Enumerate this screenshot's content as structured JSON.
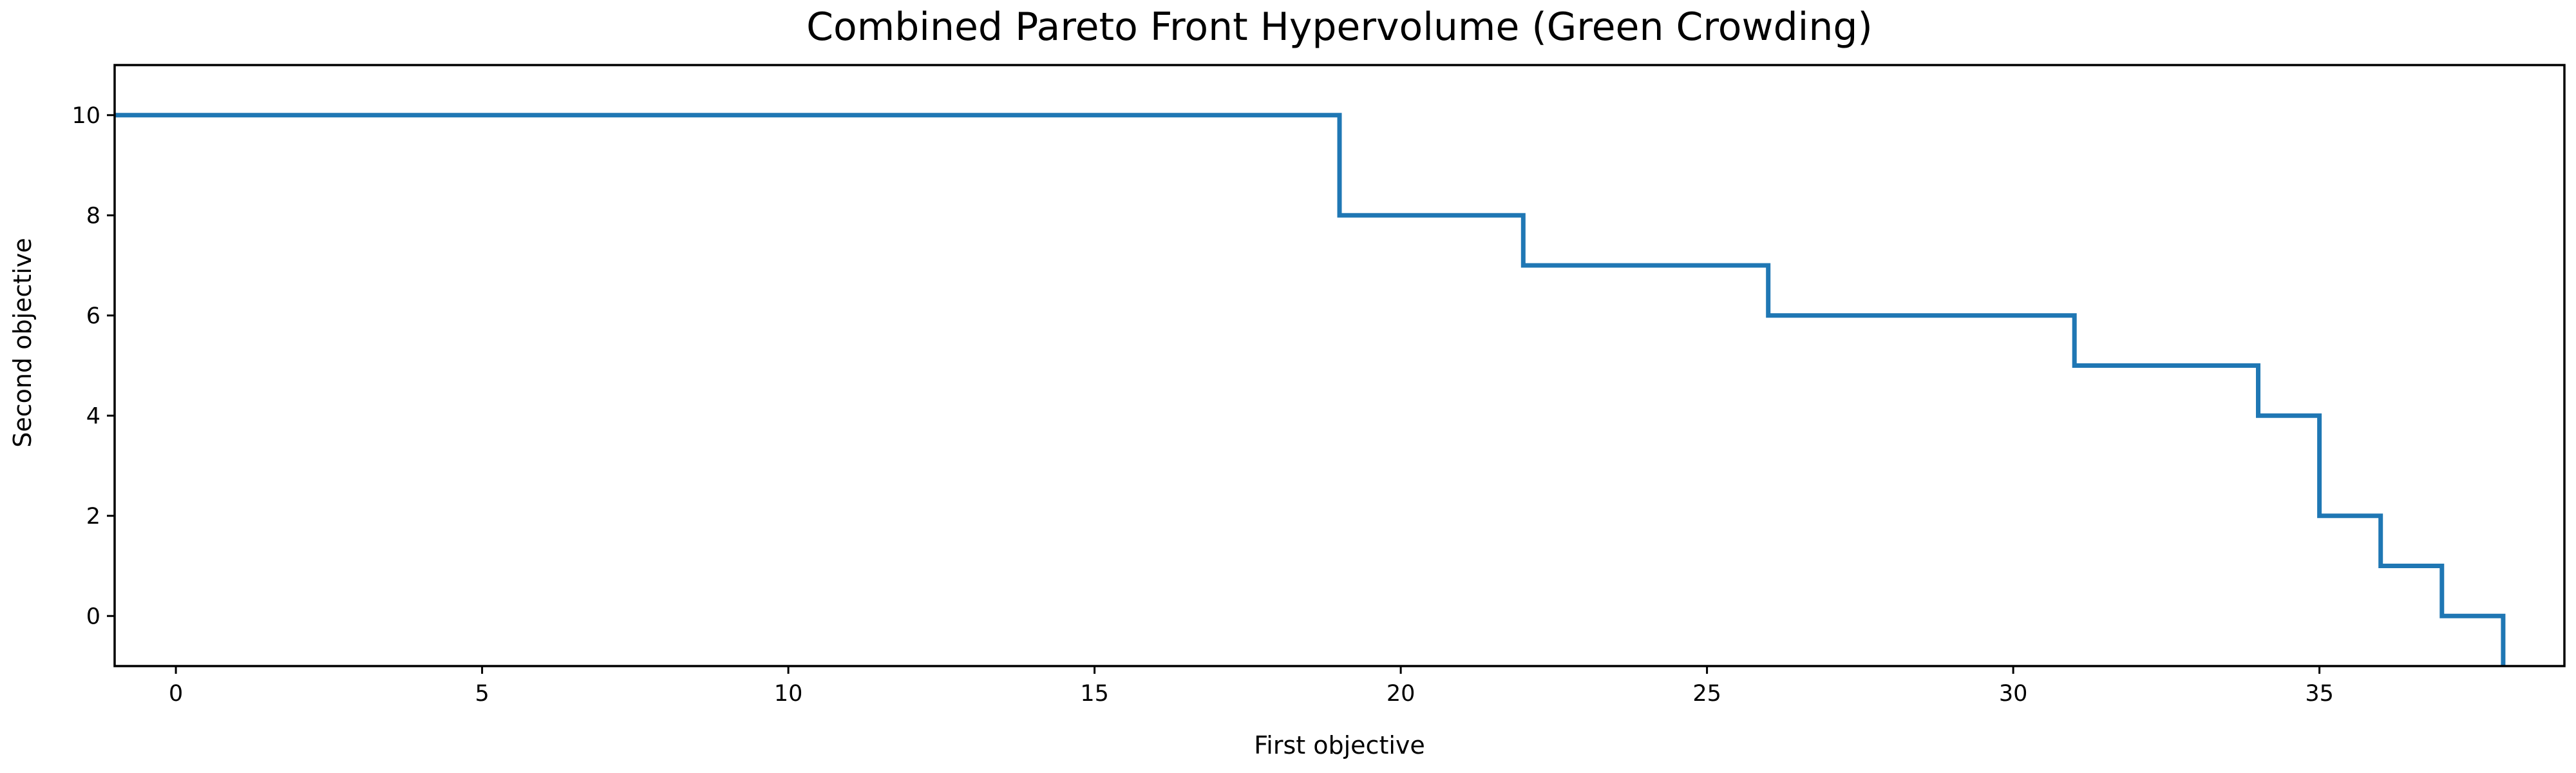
{
  "chart_data": {
    "type": "line",
    "step": "post",
    "title": "Combined Pareto Front Hypervolume (Green Crowding)",
    "xlabel": "First objective",
    "ylabel": "Second objective",
    "xlim": [
      -1,
      39
    ],
    "ylim": [
      -1,
      11
    ],
    "xticks": [
      0,
      5,
      10,
      15,
      20,
      25,
      30,
      35
    ],
    "yticks": [
      0,
      2,
      4,
      6,
      8,
      10
    ],
    "grid": false,
    "series": [
      {
        "color": "#1f77b4",
        "x": [
          -1,
          19,
          22,
          26,
          31,
          34,
          35,
          36,
          37,
          38,
          38
        ],
        "y": [
          10,
          8,
          7,
          6,
          5,
          4,
          2,
          1,
          0,
          -1,
          -1
        ]
      }
    ]
  }
}
